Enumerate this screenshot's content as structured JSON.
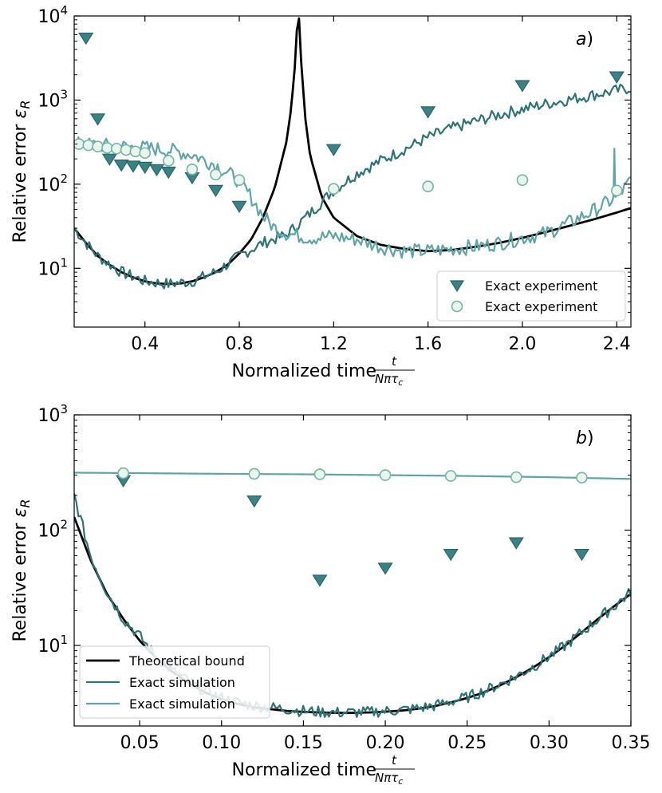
{
  "colors": {
    "bound": "#000000",
    "dark_teal": "#2e7475",
    "light_teal": "#5fa5a6",
    "circle_fill": "#e8f6ec",
    "circle_edge": "#76b1ad",
    "triangle_fill": "#3b8285",
    "triangle_edge": "#2a6567"
  },
  "chart_data": [
    {
      "panel": "a",
      "type": "line",
      "panel_label": "a",
      "xlabel": "Normalized time",
      "xlabel_fraction": {
        "numerator": "t",
        "denominator": "Nπτ_c"
      },
      "ylabel": "Relative error ε_R",
      "xlim": [
        0.1,
        2.46
      ],
      "ylim": [
        2,
        10000
      ],
      "yscale": "log",
      "xticks": [
        "0.4",
        "0.8",
        "1.2",
        "1.6",
        "2.0",
        "2.4"
      ],
      "xtick_values": [
        0.4,
        0.8,
        1.2,
        1.6,
        2.0,
        2.4
      ],
      "ytick_values": [
        10,
        100,
        1000,
        10000
      ],
      "ytick_mantissa": "10",
      "ytick_exponents": [
        "1",
        "2",
        "3",
        "4"
      ],
      "legend_position": "lower-right",
      "legend": [
        "Exact experiment",
        "Exact experiment"
      ],
      "series": [
        {
          "name": "Theoretical bound",
          "kind": "line",
          "color_key": "bound",
          "width": 2.8,
          "x": [
            0.1,
            0.15,
            0.2,
            0.25,
            0.3,
            0.35,
            0.4,
            0.45,
            0.5,
            0.55,
            0.6,
            0.65,
            0.7,
            0.75,
            0.8,
            0.85,
            0.9,
            0.95,
            1.0,
            1.02,
            1.04,
            1.045,
            1.05,
            1.055,
            1.06,
            1.08,
            1.1,
            1.15,
            1.2,
            1.3,
            1.4,
            1.5,
            1.6,
            1.7,
            1.8,
            1.9,
            2.0,
            2.1,
            2.2,
            2.3,
            2.4,
            2.46
          ],
          "y": [
            30,
            20,
            14,
            11,
            9,
            7.8,
            7,
            6.6,
            6.5,
            6.6,
            7,
            7.8,
            9,
            11,
            15,
            22,
            40,
            90,
            320,
            800,
            3500,
            8000,
            12000,
            8000,
            3500,
            600,
            220,
            70,
            40,
            24,
            19,
            17,
            16,
            16.5,
            18,
            20,
            23,
            27,
            32,
            38,
            46,
            52
          ]
        },
        {
          "name": "Exact simulation",
          "kind": "line",
          "color_key": "dark_teal",
          "width": 2.2,
          "noise": 0.07,
          "x": [
            0.1,
            0.15,
            0.2,
            0.3,
            0.4,
            0.5,
            0.6,
            0.7,
            0.8,
            0.9,
            1.0,
            1.1,
            1.2,
            1.3,
            1.4,
            1.5,
            1.6,
            1.7,
            1.8,
            1.9,
            2.0,
            2.1,
            2.2,
            2.3,
            2.4,
            2.46
          ],
          "y": [
            30,
            20,
            14,
            9,
            7,
            6.5,
            7,
            9,
            14,
            20,
            25,
            45,
            85,
            135,
            190,
            260,
            360,
            460,
            560,
            670,
            780,
            900,
            1020,
            1150,
            1300,
            1400
          ]
        },
        {
          "name": "Exact simulation",
          "kind": "line",
          "color_key": "light_teal",
          "width": 2.2,
          "noise": 0.09,
          "x": [
            0.1,
            0.2,
            0.3,
            0.4,
            0.5,
            0.6,
            0.7,
            0.8,
            0.85,
            0.9,
            0.95,
            1.0,
            1.1,
            1.2,
            1.3,
            1.4,
            1.5,
            1.6,
            1.7,
            1.8,
            1.9,
            2.0,
            2.1,
            2.2,
            2.3,
            2.4,
            2.46
          ],
          "y": [
            300,
            290,
            280,
            270,
            255,
            225,
            170,
            110,
            70,
            42,
            30,
            26,
            23,
            24,
            22,
            18,
            16,
            16,
            17,
            18,
            20,
            23,
            26,
            35,
            48,
            70,
            110
          ],
          "spike": {
            "x": 2.39,
            "y": 265
          }
        },
        {
          "name": "Exact experiment",
          "kind": "triangle",
          "color_key": "triangle_fill",
          "x": [
            0.15,
            0.2,
            0.25,
            0.3,
            0.35,
            0.4,
            0.45,
            0.5,
            0.6,
            0.7,
            0.8,
            1.2,
            1.6,
            2.0,
            2.4
          ],
          "y": [
            5500,
            600,
            200,
            170,
            165,
            160,
            150,
            140,
            120,
            85,
            55,
            260,
            730,
            1500,
            1900
          ]
        },
        {
          "name": "Exact experiment",
          "kind": "circle",
          "color_key": "circle_fill",
          "x": [
            0.12,
            0.16,
            0.2,
            0.24,
            0.28,
            0.32,
            0.36,
            0.4,
            0.5,
            0.6,
            0.7,
            0.8,
            1.2,
            1.6,
            2.0,
            2.4
          ],
          "y": [
            300,
            290,
            280,
            270,
            265,
            255,
            245,
            235,
            190,
            150,
            130,
            112,
            88,
            94,
            112,
            84
          ]
        }
      ]
    },
    {
      "panel": "b",
      "type": "line",
      "panel_label": "b",
      "xlabel": "Normalized time",
      "xlabel_fraction": {
        "numerator": "t",
        "denominator": "Nπτ_c"
      },
      "ylabel": "Relative error ε_R",
      "xlim": [
        0.01,
        0.35
      ],
      "ylim": [
        2,
        1000
      ],
      "yscale": "log",
      "xticks": [
        "0.05",
        "0.10",
        "0.15",
        "0.20",
        "0.25",
        "0.30",
        "0.35"
      ],
      "xtick_values": [
        0.05,
        0.1,
        0.15,
        0.2,
        0.25,
        0.3,
        0.35
      ],
      "ytick_values": [
        10,
        100,
        1000
      ],
      "ytick_mantissa": "10",
      "ytick_exponents": [
        "1",
        "2",
        "3"
      ],
      "legend_position": "lower-left",
      "legend": [
        "Theoretical bound",
        "Exact simulation",
        "Exact simulation"
      ],
      "series": [
        {
          "name": "Theoretical bound",
          "kind": "line",
          "color_key": "bound",
          "width": 2.8,
          "x": [
            0.01,
            0.02,
            0.03,
            0.04,
            0.05,
            0.06,
            0.07,
            0.08,
            0.09,
            0.1,
            0.11,
            0.12,
            0.13,
            0.14,
            0.15,
            0.16,
            0.17,
            0.18,
            0.19,
            0.2,
            0.21,
            0.22,
            0.23,
            0.24,
            0.25,
            0.26,
            0.27,
            0.28,
            0.29,
            0.3,
            0.31,
            0.32,
            0.33,
            0.34,
            0.35
          ],
          "y": [
            130,
            55,
            28,
            17,
            11,
            7.8,
            5.9,
            4.7,
            3.9,
            3.4,
            3.1,
            2.9,
            2.8,
            2.7,
            2.65,
            2.62,
            2.6,
            2.6,
            2.62,
            2.66,
            2.72,
            2.82,
            2.97,
            3.2,
            3.5,
            3.9,
            4.5,
            5.3,
            6.4,
            7.9,
            10,
            13,
            17,
            22,
            28
          ]
        },
        {
          "name": "Exact simulation",
          "kind": "line",
          "color_key": "dark_teal",
          "width": 2.2,
          "noise": 0.05,
          "x": [
            0.01,
            0.02,
            0.03,
            0.04,
            0.05,
            0.06,
            0.07,
            0.08,
            0.09,
            0.1,
            0.11,
            0.12,
            0.13,
            0.14,
            0.15,
            0.16,
            0.17,
            0.18,
            0.19,
            0.2,
            0.21,
            0.22,
            0.23,
            0.24,
            0.25,
            0.26,
            0.27,
            0.28,
            0.29,
            0.3,
            0.31,
            0.32,
            0.33,
            0.34,
            0.35
          ],
          "y": [
            200,
            60,
            29,
            17,
            12,
            8,
            6,
            4.9,
            4,
            3.5,
            3.2,
            3,
            2.9,
            2.8,
            2.7,
            2.65,
            2.62,
            2.62,
            2.64,
            2.7,
            2.75,
            2.85,
            3,
            3.25,
            3.55,
            4,
            4.6,
            5.4,
            6.5,
            8,
            10,
            13,
            17,
            22,
            29
          ]
        },
        {
          "name": "Exact simulation",
          "kind": "line",
          "color_key": "light_teal",
          "width": 2.2,
          "x": [
            0.01,
            0.05,
            0.1,
            0.15,
            0.2,
            0.25,
            0.3,
            0.35
          ],
          "y": [
            315,
            312,
            308,
            305,
            300,
            295,
            288,
            278
          ]
        },
        {
          "name": "Exact experiment",
          "kind": "triangle",
          "color_key": "triangle_fill",
          "x": [
            0.04,
            0.12,
            0.16,
            0.2,
            0.24,
            0.28,
            0.32
          ],
          "y": [
            270,
            180,
            37,
            47,
            62,
            78,
            62
          ]
        },
        {
          "name": "Exact experiment",
          "kind": "circle",
          "color_key": "circle_fill",
          "x": [
            0.04,
            0.12,
            0.16,
            0.2,
            0.24,
            0.28,
            0.32
          ],
          "y": [
            312,
            308,
            305,
            300,
            295,
            288,
            285
          ]
        }
      ]
    }
  ]
}
